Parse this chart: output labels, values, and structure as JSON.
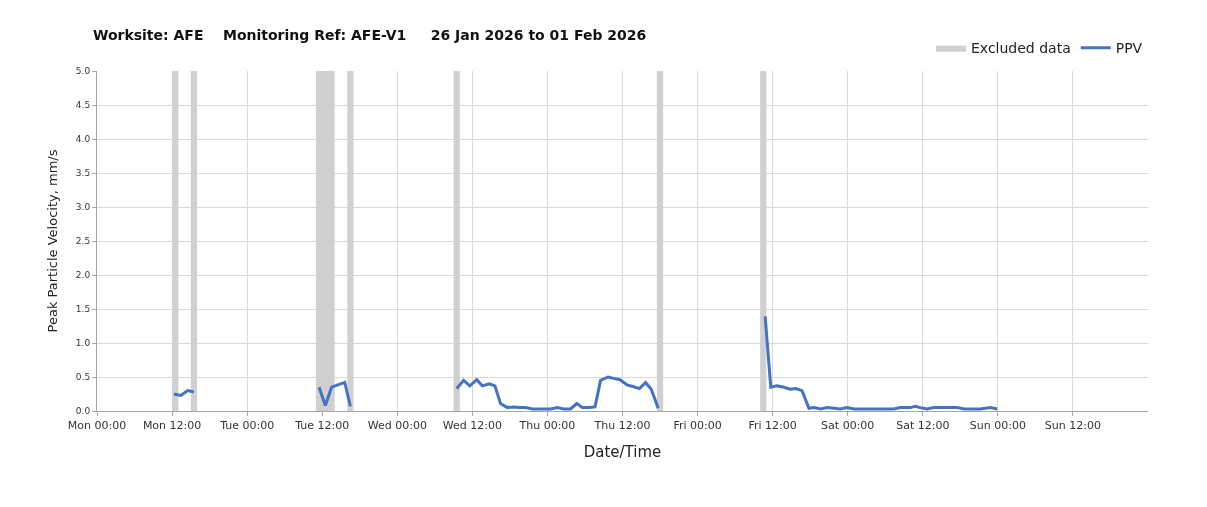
{
  "chart_data": {
    "type": "line",
    "title": "Worksite: AFE    Monitoring Ref: AFE-V1     26 Jan 2026 to 01 Feb 2026",
    "xlabel": "Date/Time",
    "ylabel": "Peak Particle Velocity, mm/s",
    "series": [
      {
        "name": "PPV",
        "color": "#4472c4",
        "x": [
          "2026-01-26T12:18",
          "2026-01-26T13:24",
          "2026-01-26T14:30",
          "2026-01-26T15:30",
          "2026-01-26T16:00",
          "2026-01-27T11:30",
          "2026-01-27T12:30",
          "2026-01-27T13:30",
          "2026-01-27T15:36",
          "2026-01-27T16:30",
          "2026-01-27T17:00",
          "2026-01-28T09:30",
          "2026-01-28T10:36",
          "2026-01-28T11:36",
          "2026-01-28T12:42",
          "2026-01-28T13:36",
          "2026-01-28T14:42",
          "2026-01-28T15:36",
          "2026-01-28T16:30",
          "2026-01-28T17:36",
          "2026-01-28T18:36",
          "2026-01-28T19:30",
          "2026-01-28T20:30",
          "2026-01-28T21:36",
          "2026-01-28T22:42",
          "2026-01-28T23:42",
          "2026-01-29T00:30",
          "2026-01-29T01:36",
          "2026-01-29T02:36",
          "2026-01-29T03:42",
          "2026-01-29T04:42",
          "2026-01-29T05:36",
          "2026-01-29T06:36",
          "2026-01-29T07:36",
          "2026-01-29T08:30",
          "2026-01-29T09:42",
          "2026-01-29T10:36",
          "2026-01-29T11:36",
          "2026-01-29T12:48",
          "2026-01-29T13:42",
          "2026-01-29T14:42",
          "2026-01-29T15:42",
          "2026-01-29T16:36",
          "2026-01-29T17:42",
          "2026-01-29T18:00",
          "2026-01-30T10:48",
          "2026-01-30T11:42",
          "2026-01-30T12:42",
          "2026-01-30T13:48",
          "2026-01-30T14:48",
          "2026-01-30T15:42",
          "2026-01-30T16:42",
          "2026-01-30T17:48",
          "2026-01-30T18:36",
          "2026-01-30T19:42",
          "2026-01-30T20:42",
          "2026-01-30T21:48",
          "2026-01-30T22:48",
          "2026-01-30T23:54",
          "2026-01-31T01:00",
          "2026-01-31T07:24",
          "2026-01-31T08:24",
          "2026-01-31T10:00",
          "2026-01-31T10:48",
          "2026-01-31T11:36",
          "2026-01-31T12:42",
          "2026-01-31T13:42",
          "2026-01-31T15:54",
          "2026-01-31T17:30",
          "2026-01-31T18:36",
          "2026-01-31T21:12",
          "2026-01-31T22:48",
          "2026-01-31T23:54"
        ],
        "values": [
          0.25,
          0.23,
          0.3,
          0.28,
          null,
          0.35,
          0.08,
          0.35,
          0.42,
          0.07,
          null,
          0.33,
          0.45,
          0.37,
          0.46,
          0.37,
          0.4,
          0.37,
          0.11,
          0.05,
          0.06,
          0.05,
          0.05,
          0.03,
          0.03,
          0.03,
          0.03,
          0.05,
          0.03,
          0.03,
          0.11,
          0.05,
          0.05,
          0.06,
          0.45,
          0.5,
          0.48,
          0.46,
          0.38,
          0.36,
          0.33,
          0.42,
          0.32,
          0.04,
          null,
          1.39,
          0.35,
          0.37,
          0.35,
          0.32,
          0.33,
          0.3,
          0.04,
          0.05,
          0.03,
          0.05,
          0.04,
          0.03,
          0.05,
          0.03,
          0.03,
          0.05,
          0.05,
          0.07,
          0.05,
          0.03,
          0.05,
          0.05,
          0.05,
          0.03,
          0.03,
          0.05,
          0.03
        ]
      }
    ],
    "bands": [
      {
        "axis": "x",
        "from": "2026-01-26T12:00",
        "to": "2026-01-26T13:00",
        "label": "Excluded data",
        "color": "#d0d0d0"
      },
      {
        "axis": "x",
        "from": "2026-01-26T15:00",
        "to": "2026-01-26T16:00",
        "color": "#d0d0d0"
      },
      {
        "axis": "x",
        "from": "2026-01-27T11:00",
        "to": "2026-01-27T14:00",
        "color": "#d0d0d0"
      },
      {
        "axis": "x",
        "from": "2026-01-27T16:00",
        "to": "2026-01-27T17:00",
        "color": "#d0d0d0"
      },
      {
        "axis": "x",
        "from": "2026-01-28T09:00",
        "to": "2026-01-28T10:00",
        "color": "#d0d0d0"
      },
      {
        "axis": "x",
        "from": "2026-01-29T17:30",
        "to": "2026-01-29T18:30",
        "color": "#d0d0d0"
      },
      {
        "axis": "x",
        "from": "2026-01-30T10:00",
        "to": "2026-01-30T11:00",
        "color": "#d0d0d0"
      }
    ],
    "xlim": [
      "2026-01-26T00:00",
      "2026-02-02T00:00"
    ],
    "xticks": [
      {
        "value": "2026-01-26T00:00",
        "label": "Mon 00:00"
      },
      {
        "value": "2026-01-26T12:00",
        "label": "Mon 12:00"
      },
      {
        "value": "2026-01-27T00:00",
        "label": "Tue 00:00"
      },
      {
        "value": "2026-01-27T12:00",
        "label": "Tue 12:00"
      },
      {
        "value": "2026-01-28T00:00",
        "label": "Wed 00:00"
      },
      {
        "value": "2026-01-28T12:00",
        "label": "Wed 12:00"
      },
      {
        "value": "2026-01-29T00:00",
        "label": "Thu 00:00"
      },
      {
        "value": "2026-01-29T12:00",
        "label": "Thu 12:00"
      },
      {
        "value": "2026-01-30T00:00",
        "label": "Fri 00:00"
      },
      {
        "value": "2026-01-30T12:00",
        "label": "Fri 12:00"
      },
      {
        "value": "2026-01-31T00:00",
        "label": "Sat 00:00"
      },
      {
        "value": "2026-01-31T12:00",
        "label": "Sat 12:00"
      },
      {
        "value": "2026-02-01T00:00",
        "label": "Sun 00:00"
      },
      {
        "value": "2026-02-01T12:00",
        "label": "Sun 12:00"
      }
    ],
    "ylim": [
      0,
      5
    ],
    "yticks": [
      {
        "value": 0,
        "label": "0.0"
      },
      {
        "value": 0.5,
        "label": "0.5"
      },
      {
        "value": 1,
        "label": "1.0"
      },
      {
        "value": 1.5,
        "label": "1.5"
      },
      {
        "value": 2,
        "label": "2.0"
      },
      {
        "value": 2.5,
        "label": "2.5"
      },
      {
        "value": 3,
        "label": "3.0"
      },
      {
        "value": 3.5,
        "label": "3.5"
      },
      {
        "value": 4,
        "label": "4.0"
      },
      {
        "value": 4.5,
        "label": "4.5"
      },
      {
        "value": 5,
        "label": "5.0"
      }
    ],
    "grid": true,
    "legend": "top right",
    "line_style": "solid",
    "marker": "none"
  }
}
